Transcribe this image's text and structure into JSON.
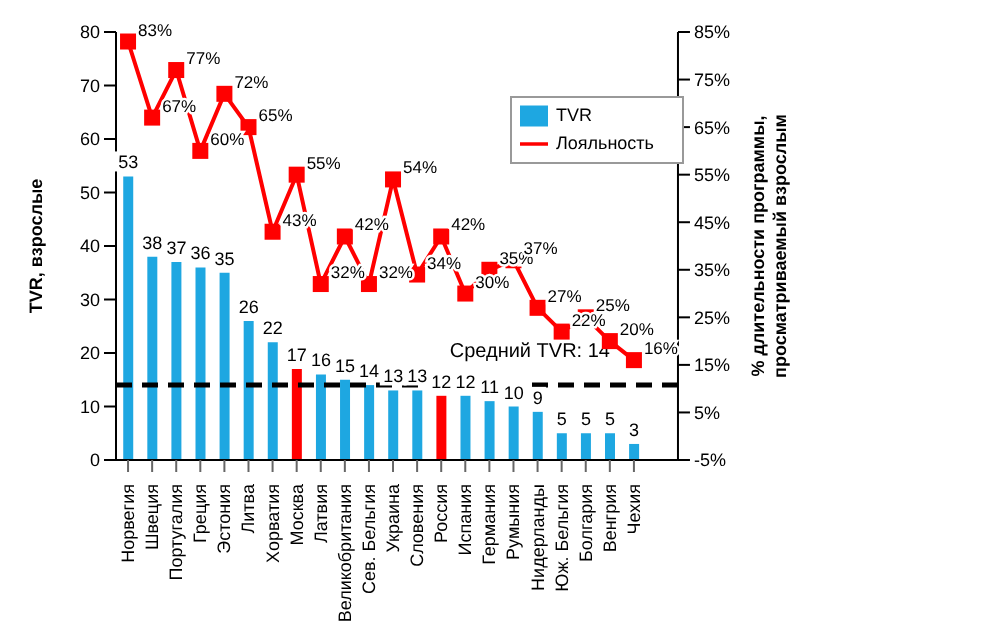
{
  "chart_data": {
    "type": "bar",
    "categories": [
      "Норвегия",
      "Швеция",
      "Португалия",
      "Греция",
      "Эстония",
      "Литва",
      "Хорватия",
      "Москва",
      "Латвия",
      "Великобритания",
      "Сев. Бельгия",
      "Украина",
      "Словения",
      "Россия",
      "Испания",
      "Германия",
      "Румыния",
      "Нидерланды",
      "Юж. Бельгия",
      "Болгария",
      "Венгрия",
      "Чехия"
    ],
    "series": [
      {
        "name": "TVR",
        "color": "#1ea7e1",
        "colors": [
          "#1ea7e1",
          "#1ea7e1",
          "#1ea7e1",
          "#1ea7e1",
          "#1ea7e1",
          "#1ea7e1",
          "#1ea7e1",
          "#ff0000",
          "#1ea7e1",
          "#1ea7e1",
          "#1ea7e1",
          "#1ea7e1",
          "#1ea7e1",
          "#ff0000",
          "#1ea7e1",
          "#1ea7e1",
          "#1ea7e1",
          "#1ea7e1",
          "#1ea7e1",
          "#1ea7e1",
          "#1ea7e1",
          "#1ea7e1"
        ],
        "values": [
          53,
          38,
          37,
          36,
          35,
          26,
          22,
          17,
          16,
          15,
          14,
          13,
          13,
          12,
          12,
          11,
          10,
          9,
          5,
          5,
          5,
          3
        ],
        "value_labels": [
          "53",
          "38",
          "37",
          "36",
          "35",
          "26",
          "22",
          "17",
          "16",
          "15",
          "14",
          "13",
          "13",
          "12",
          "12",
          "11",
          "10",
          "9",
          "5",
          "5",
          "5",
          "3"
        ]
      },
      {
        "name": "Лояльность",
        "type": "line",
        "axis": "y2",
        "color": "#ff0000",
        "values": [
          83,
          67,
          77,
          60,
          72,
          65,
          43,
          55,
          32,
          42,
          32,
          54,
          34,
          42,
          30,
          35,
          37,
          27,
          22,
          25,
          20,
          16
        ],
        "value_labels": [
          "83%",
          "67%",
          "77%",
          "60%",
          "72%",
          "65%",
          "43%",
          "55%",
          "32%",
          "42%",
          "32%",
          "54%",
          "34%",
          "42%",
          "30%",
          "35%",
          "37%",
          "27%",
          "22%",
          "25%",
          "20%",
          "16%"
        ]
      }
    ],
    "ylabel": "TVR, взрослые",
    "y2label": "% длительности программы, просматриваемый взрослым",
    "ylim": [
      0,
      80
    ],
    "yticks": [
      0,
      10,
      20,
      30,
      40,
      50,
      60,
      70,
      80
    ],
    "y2lim": [
      -5,
      85
    ],
    "y2ticks": [
      {
        "value": -5,
        "label": "-5%"
      },
      {
        "value": 5,
        "label": "5%"
      },
      {
        "value": 15,
        "label": "15%"
      },
      {
        "value": 25,
        "label": "25%"
      },
      {
        "value": 35,
        "label": "35%"
      },
      {
        "value": 45,
        "label": "45%"
      },
      {
        "value": 55,
        "label": "55%"
      },
      {
        "value": 65,
        "label": "65%"
      },
      {
        "value": 75,
        "label": "75%"
      },
      {
        "value": 85,
        "label": "85%"
      }
    ],
    "ref_lines": [
      {
        "axis": "y",
        "value": 14,
        "label": "Средний TVR: 14",
        "color": "#000000",
        "line_style": "dashed"
      }
    ],
    "legend": "top right",
    "marker": "square",
    "line_style": "solid",
    "grid": false
  }
}
